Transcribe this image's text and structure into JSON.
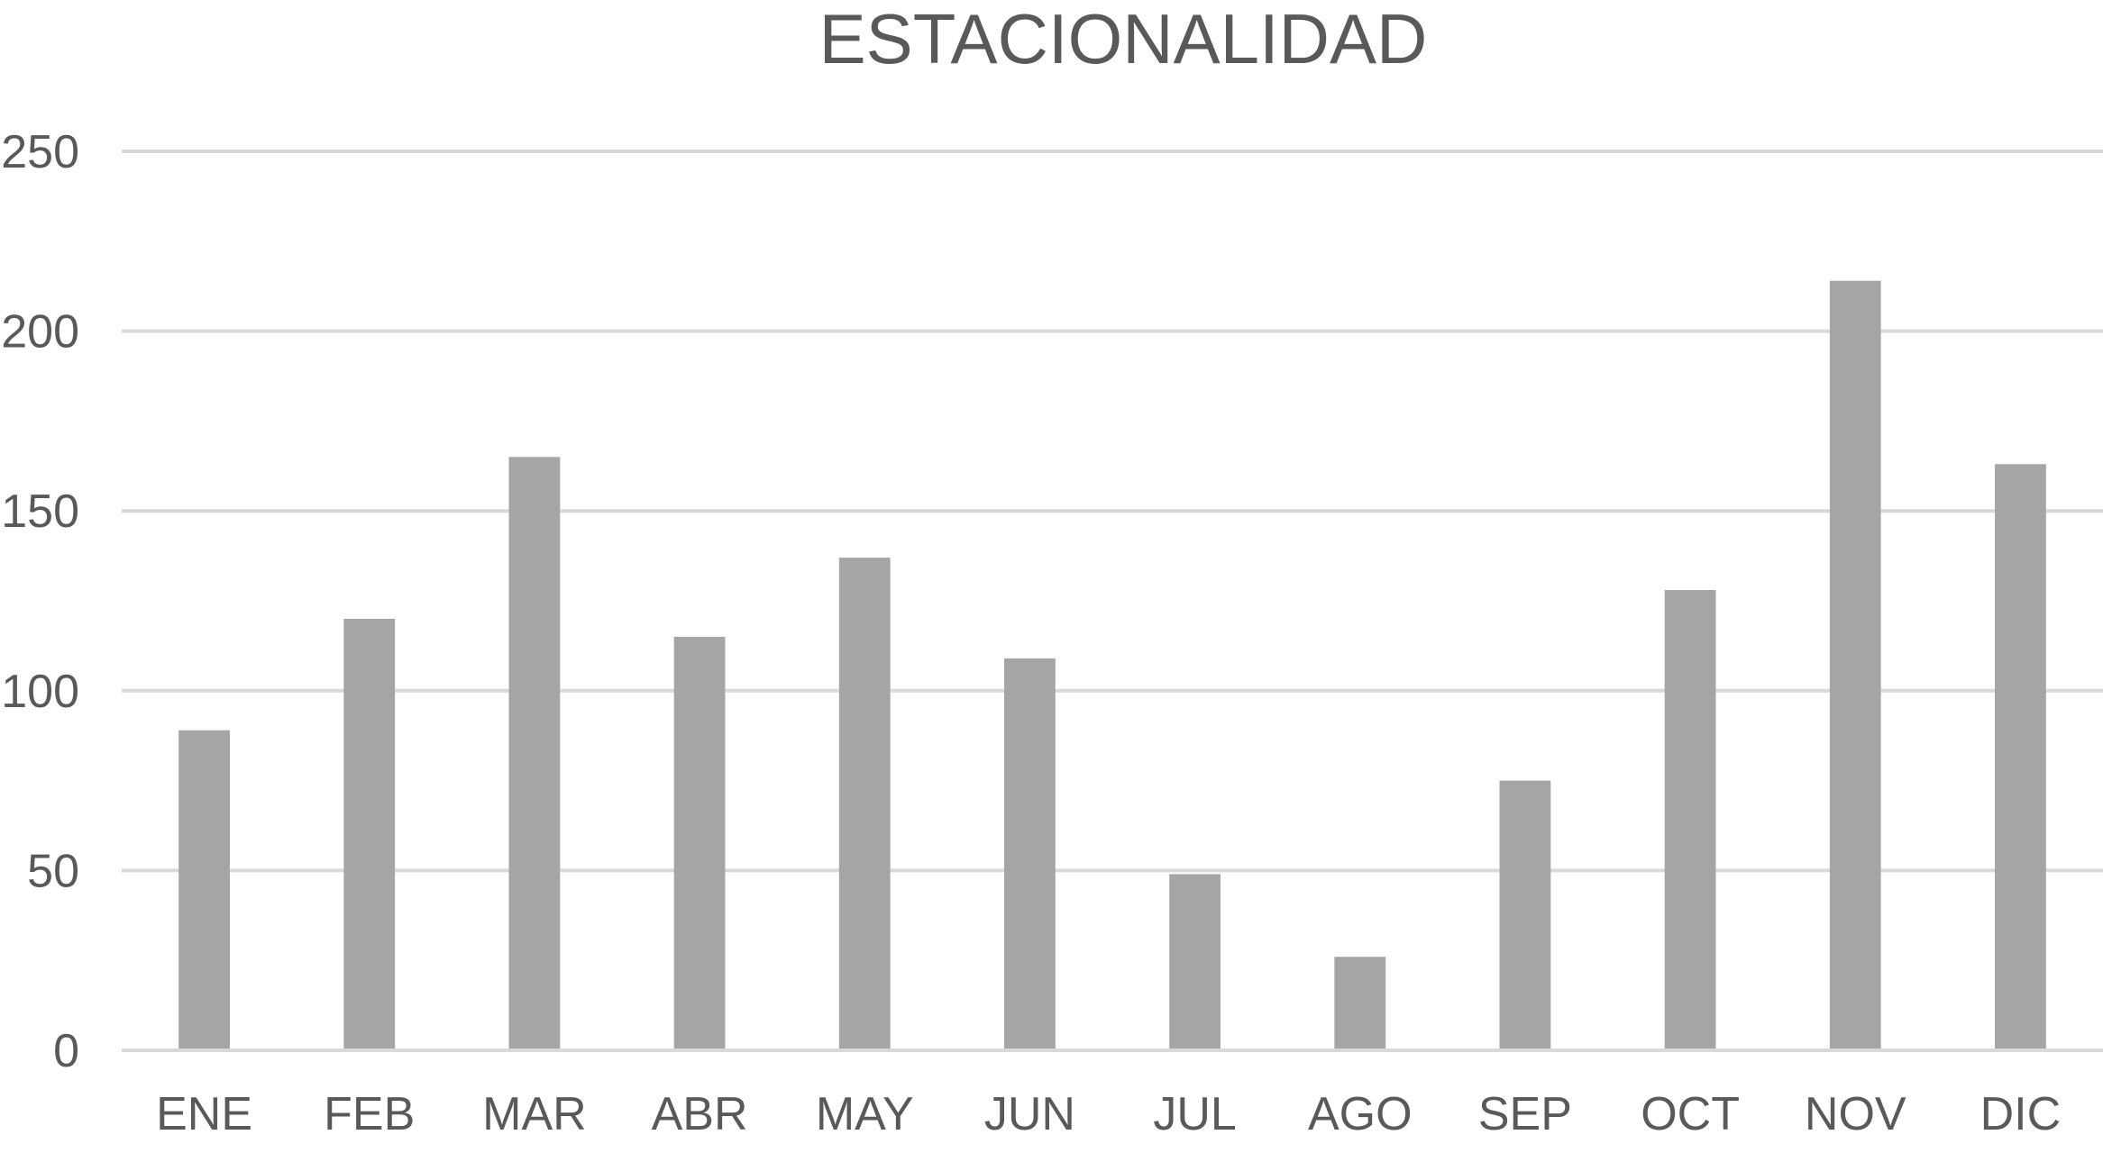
{
  "chart_data": {
    "type": "bar",
    "title": "ESTACIONALIDAD",
    "categories": [
      "ENE",
      "FEB",
      "MAR",
      "ABR",
      "MAY",
      "JUN",
      "JUL",
      "AGO",
      "SEP",
      "OCT",
      "NOV",
      "DIC"
    ],
    "values": [
      89,
      120,
      165,
      115,
      137,
      109,
      49,
      26,
      75,
      128,
      214,
      163
    ],
    "y_ticks": [
      "0",
      "50",
      "100",
      "150",
      "200",
      "250"
    ],
    "ylim": [
      0,
      250
    ],
    "xlabel": "",
    "ylabel": "",
    "grid": true,
    "legend": "none",
    "bar_color": "#a5a5a5",
    "text_color": "#595959",
    "grid_color": "#d9d9d9"
  }
}
